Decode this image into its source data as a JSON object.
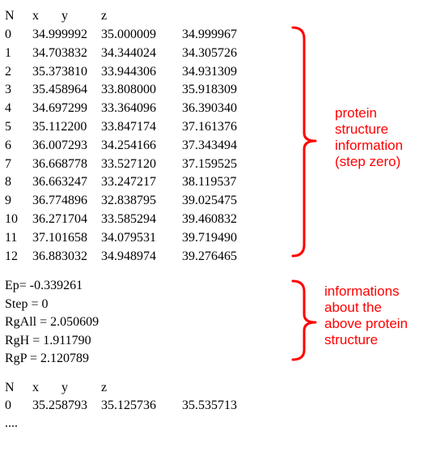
{
  "table1": {
    "headers": [
      "N",
      "x",
      "y",
      "z"
    ],
    "rows": [
      [
        "0",
        "34.999992",
        "35.000009",
        "34.999967"
      ],
      [
        "1",
        "34.703832",
        "34.344024",
        "34.305726"
      ],
      [
        "2",
        "35.373810",
        "33.944306",
        "34.931309"
      ],
      [
        "3",
        "35.458964",
        "33.808000",
        "35.918309"
      ],
      [
        "4",
        "34.697299",
        "33.364096",
        "36.390340"
      ],
      [
        "5",
        "35.112200",
        "33.847174",
        "37.161376"
      ],
      [
        "6",
        "36.007293",
        "34.254166",
        "37.343494"
      ],
      [
        "7",
        "36.668778",
        "33.527120",
        "37.159525"
      ],
      [
        "8",
        "36.663247",
        "33.247217",
        "38.119537"
      ],
      [
        "9",
        "36.774896",
        "32.838795",
        "39.025475"
      ],
      [
        "10",
        "36.271704",
        "33.585294",
        "39.460832"
      ],
      [
        "11",
        "37.101658",
        "34.079531",
        "39.719490"
      ],
      [
        "12",
        "36.883032",
        "34.948974",
        "39.276465"
      ]
    ]
  },
  "info_lines": [
    "Ep= -0.339261",
    "Step = 0",
    "RgAll = 2.050609",
    "RgH = 1.911790",
    "RgP = 2.120789"
  ],
  "table2": {
    "headers": [
      "N",
      "x",
      "y",
      "z"
    ],
    "rows": [
      [
        "0",
        "35.258793",
        "35.125736",
        "35.535713"
      ]
    ]
  },
  "ellipsis": "....",
  "annotations": {
    "structure": [
      "protein",
      "structure",
      "information",
      "(step zero)"
    ],
    "info": [
      "informations",
      "about the",
      "above protein",
      "structure"
    ]
  },
  "colors": {
    "annotation": "#ff0000",
    "text": "#000000"
  }
}
